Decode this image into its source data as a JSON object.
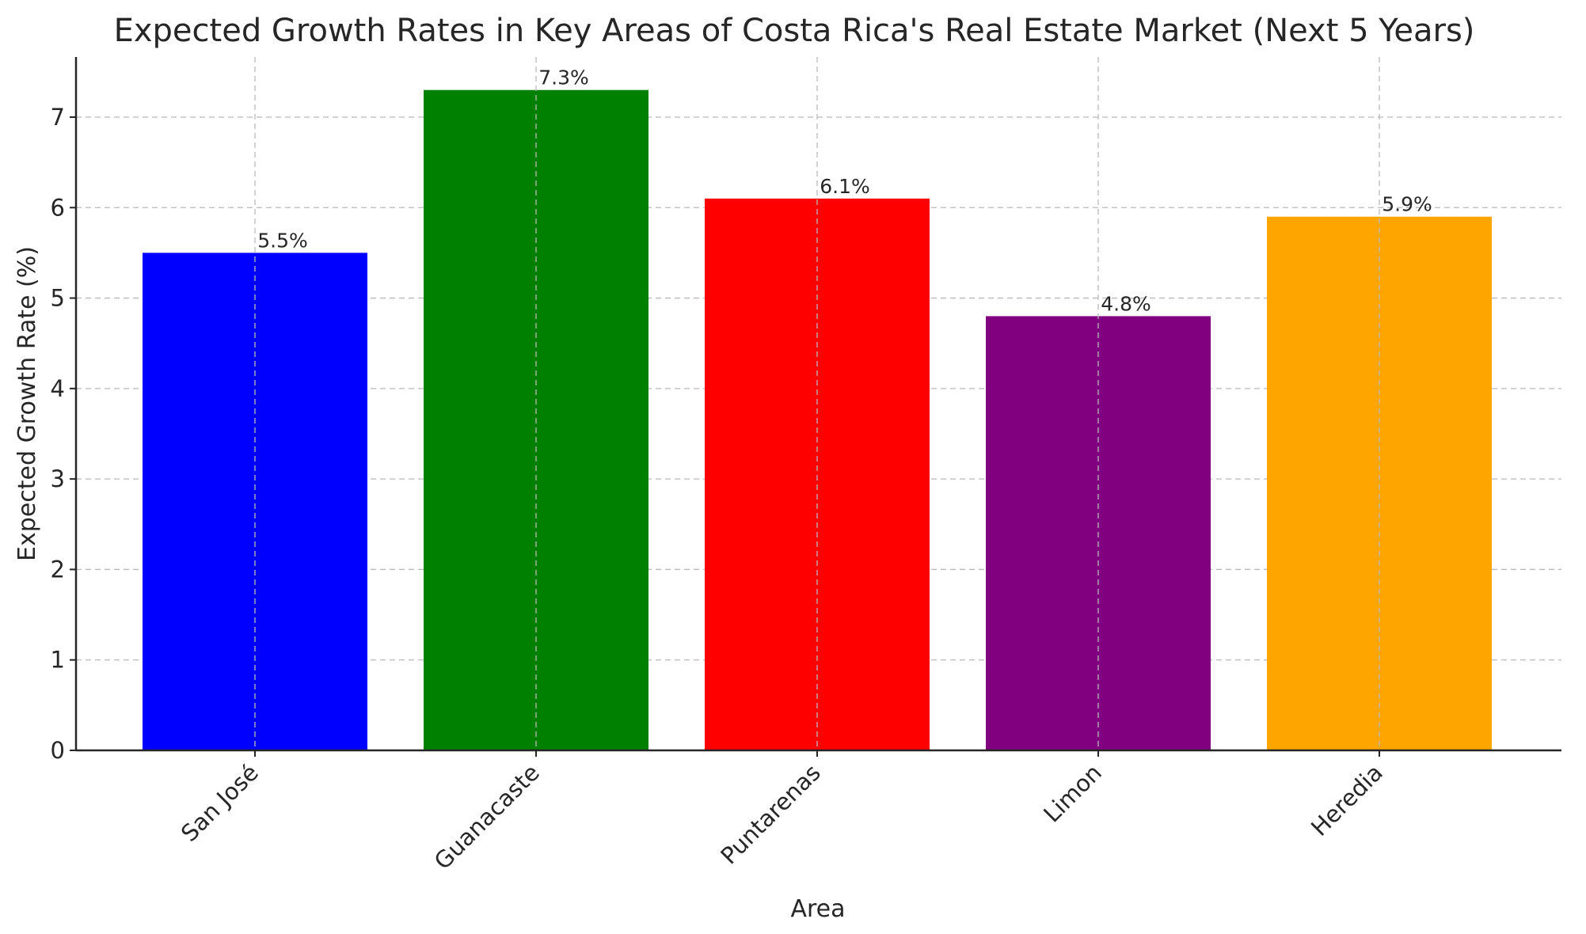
{
  "chart_data": {
    "type": "bar",
    "title": "Expected Growth Rates in Key Areas of Costa Rica's Real Estate Market (Next 5 Years)",
    "xlabel": "Area",
    "ylabel": "Expected Growth Rate (%)",
    "categories": [
      "San José",
      "Guanacaste",
      "Puntarenas",
      "Limon",
      "Heredia"
    ],
    "values": [
      5.5,
      7.3,
      6.1,
      4.8,
      5.9
    ],
    "data_labels": [
      "5.5%",
      "7.3%",
      "6.1%",
      "4.8%",
      "5.9%"
    ],
    "colors": [
      "#0000ff",
      "#008000",
      "#ff0000",
      "#800080",
      "#ffa500"
    ],
    "yticks": [
      0,
      1,
      2,
      3,
      4,
      5,
      6,
      7
    ],
    "ylim": [
      0,
      7.665
    ],
    "grid": true
  }
}
